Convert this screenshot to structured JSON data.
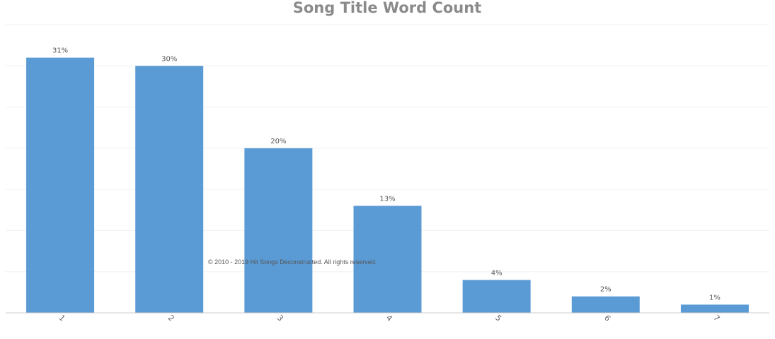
{
  "chart_data": {
    "type": "bar",
    "title": "Song Title Word Count",
    "categories": [
      "1",
      "2",
      "3",
      "4",
      "5",
      "6",
      "7"
    ],
    "values": [
      31,
      30,
      20,
      13,
      4,
      2,
      1
    ],
    "data_labels": [
      "31%",
      "30%",
      "20%",
      "13%",
      "4%",
      "2%",
      "1%"
    ],
    "xlabel": "",
    "ylabel": "",
    "ylim": [
      0,
      35
    ],
    "grid": true,
    "legend": "none",
    "colors": {
      "bar": "#5b9bd5",
      "grid": "#f0f0f0",
      "axis": "#cccccc"
    }
  },
  "footer": {
    "copyright": "© 2010 - 2019 Hit Songs Deconstructed. All rights reserved."
  }
}
